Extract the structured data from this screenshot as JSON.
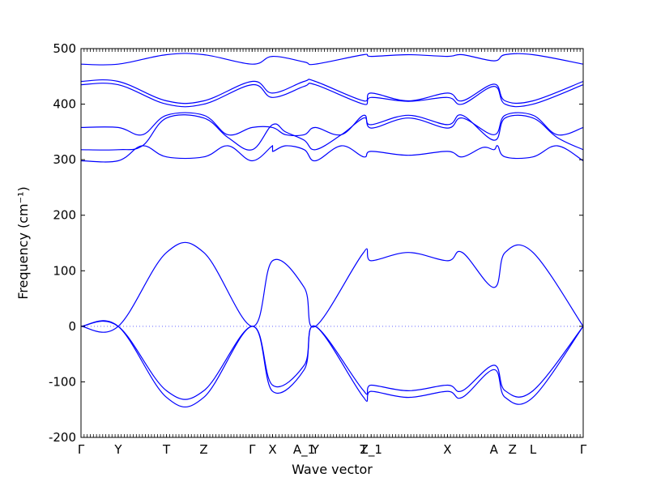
{
  "chart_data": {
    "type": "line",
    "title": "",
    "xlabel": "Wave vector",
    "ylabel": "Frequency (cm⁻¹)",
    "ylim": [
      -200,
      500
    ],
    "yticks": [
      -200,
      -100,
      0,
      100,
      200,
      300,
      400,
      500
    ],
    "xlim": [
      0,
      27
    ],
    "xticks": [
      {
        "label": "Γ",
        "x": 0
      },
      {
        "label": "Y",
        "x": 2
      },
      {
        "label": "T",
        "x": 4.6
      },
      {
        "label": "Z",
        "x": 6.6
      },
      {
        "label": "Γ",
        "x": 9.2
      },
      {
        "label": "X",
        "x": 10.3
      },
      {
        "label": "A_1",
        "x": 12
      },
      {
        "label": "Y",
        "x": 12.6
      },
      {
        "label": "T",
        "x": 15.2
      },
      {
        "label": "Z_1",
        "x": 15.6
      },
      {
        "label": "X",
        "x": 19.7
      },
      {
        "label": "A",
        "x": 22.2
      },
      {
        "label": "Z",
        "x": 23.2
      },
      {
        "label": "L",
        "x": 24.3
      },
      {
        "label": "Γ",
        "x": 27
      }
    ],
    "zero_line": {
      "y": 0,
      "style": "dotted"
    },
    "series": [
      {
        "values": [
          [
            0,
            0
          ],
          [
            2,
            0
          ],
          [
            4.6,
            133
          ],
          [
            6.6,
            133
          ],
          [
            9.2,
            0
          ],
          [
            10.3,
            118
          ],
          [
            12,
            70
          ],
          [
            12.6,
            0
          ],
          [
            15.2,
            133
          ],
          [
            15.6,
            118
          ],
          [
            17.6,
            133
          ],
          [
            19.7,
            118
          ],
          [
            20.5,
            133
          ],
          [
            22.2,
            70
          ],
          [
            22.8,
            133
          ],
          [
            24.3,
            133
          ],
          [
            27,
            0
          ]
        ]
      },
      {
        "values": [
          [
            0,
            0
          ],
          [
            2,
            0
          ],
          [
            4.6,
            -116
          ],
          [
            6.6,
            -116
          ],
          [
            9.2,
            0
          ],
          [
            10.3,
            -106
          ],
          [
            12,
            -70
          ],
          [
            12.6,
            0
          ],
          [
            15.2,
            -116
          ],
          [
            15.6,
            -106
          ],
          [
            17.6,
            -116
          ],
          [
            19.7,
            -106
          ],
          [
            20.5,
            -116
          ],
          [
            22.2,
            -70
          ],
          [
            22.8,
            -116
          ],
          [
            24.3,
            -116
          ],
          [
            27,
            0
          ]
        ]
      },
      {
        "values": [
          [
            0,
            0
          ],
          [
            2,
            0
          ],
          [
            4.6,
            -128
          ],
          [
            6.6,
            -128
          ],
          [
            9.2,
            0
          ],
          [
            10.3,
            -117
          ],
          [
            12,
            -78
          ],
          [
            12.6,
            0
          ],
          [
            15.2,
            -128
          ],
          [
            15.6,
            -117
          ],
          [
            17.6,
            -128
          ],
          [
            19.7,
            -117
          ],
          [
            20.5,
            -128
          ],
          [
            22.2,
            -78
          ],
          [
            22.8,
            -128
          ],
          [
            24.3,
            -128
          ],
          [
            27,
            0
          ]
        ]
      },
      {
        "values": [
          [
            0,
            298
          ],
          [
            2,
            298
          ],
          [
            3.3,
            325
          ],
          [
            4.6,
            305
          ],
          [
            6.6,
            305
          ],
          [
            7.9,
            325
          ],
          [
            9.2,
            298
          ],
          [
            10.3,
            325
          ],
          [
            10.3,
            315
          ],
          [
            11,
            325
          ],
          [
            12,
            318
          ],
          [
            12.6,
            298
          ],
          [
            14,
            325
          ],
          [
            15.2,
            305
          ],
          [
            15.6,
            315
          ],
          [
            17.6,
            308
          ],
          [
            19.7,
            315
          ],
          [
            20.5,
            305
          ],
          [
            21.6,
            322
          ],
          [
            22.2,
            318
          ],
          [
            22.4,
            325
          ],
          [
            22.8,
            305
          ],
          [
            24.3,
            305
          ],
          [
            25.6,
            325
          ],
          [
            27,
            298
          ]
        ]
      },
      {
        "values": [
          [
            0,
            318
          ],
          [
            2,
            318
          ],
          [
            3.3,
            325
          ],
          [
            4.6,
            375
          ],
          [
            6.6,
            375
          ],
          [
            7.9,
            340
          ],
          [
            9.2,
            318
          ],
          [
            10.3,
            363
          ],
          [
            11,
            350
          ],
          [
            12,
            335
          ],
          [
            12.6,
            318
          ],
          [
            14,
            345
          ],
          [
            15.2,
            375
          ],
          [
            15.6,
            363
          ],
          [
            17.6,
            380
          ],
          [
            19.7,
            363
          ],
          [
            20.5,
            380
          ],
          [
            22.2,
            335
          ],
          [
            22.8,
            375
          ],
          [
            24.3,
            375
          ],
          [
            25.6,
            340
          ],
          [
            27,
            318
          ]
        ]
      },
      {
        "values": [
          [
            0,
            358
          ],
          [
            2,
            358
          ],
          [
            3.3,
            345
          ],
          [
            4.6,
            380
          ],
          [
            6.6,
            380
          ],
          [
            7.9,
            345
          ],
          [
            9.2,
            358
          ],
          [
            10.3,
            358
          ],
          [
            11,
            345
          ],
          [
            12,
            345
          ],
          [
            12.6,
            358
          ],
          [
            14,
            345
          ],
          [
            15.2,
            380
          ],
          [
            15.6,
            357
          ],
          [
            17.6,
            375
          ],
          [
            19.7,
            357
          ],
          [
            20.5,
            375
          ],
          [
            22.2,
            345
          ],
          [
            22.8,
            380
          ],
          [
            24.3,
            380
          ],
          [
            25.6,
            345
          ],
          [
            27,
            358
          ]
        ]
      },
      {
        "values": [
          [
            0,
            435
          ],
          [
            2,
            435
          ],
          [
            4.6,
            400
          ],
          [
            6.6,
            400
          ],
          [
            9.2,
            435
          ],
          [
            10.3,
            412
          ],
          [
            12,
            432
          ],
          [
            12.6,
            435
          ],
          [
            15.2,
            400
          ],
          [
            15.6,
            412
          ],
          [
            17.6,
            405
          ],
          [
            19.7,
            412
          ],
          [
            20.5,
            400
          ],
          [
            22.2,
            432
          ],
          [
            22.8,
            400
          ],
          [
            24.3,
            400
          ],
          [
            27,
            435
          ]
        ]
      },
      {
        "values": [
          [
            0,
            441
          ],
          [
            2,
            441
          ],
          [
            4.6,
            406
          ],
          [
            6.6,
            406
          ],
          [
            9.2,
            441
          ],
          [
            10.3,
            420
          ],
          [
            12,
            441
          ],
          [
            12.6,
            441
          ],
          [
            15.2,
            406
          ],
          [
            15.6,
            420
          ],
          [
            17.6,
            406
          ],
          [
            19.7,
            420
          ],
          [
            20.5,
            406
          ],
          [
            22.2,
            436
          ],
          [
            22.8,
            406
          ],
          [
            24.3,
            406
          ],
          [
            27,
            441
          ]
        ]
      },
      {
        "values": [
          [
            0,
            472
          ],
          [
            2,
            472
          ],
          [
            4.6,
            489
          ],
          [
            6.6,
            489
          ],
          [
            9.2,
            472
          ],
          [
            10.3,
            486
          ],
          [
            12,
            476
          ],
          [
            12.6,
            472
          ],
          [
            15.2,
            489
          ],
          [
            15.6,
            486
          ],
          [
            17.6,
            489
          ],
          [
            19.7,
            486
          ],
          [
            20.5,
            489
          ],
          [
            22.2,
            478
          ],
          [
            22.8,
            489
          ],
          [
            24.3,
            489
          ],
          [
            27,
            472
          ]
        ]
      }
    ],
    "colors": {
      "line": "#0000ff",
      "zero_line": "#6666ff",
      "axes": "#000000"
    },
    "grid": false,
    "legend": "none"
  }
}
